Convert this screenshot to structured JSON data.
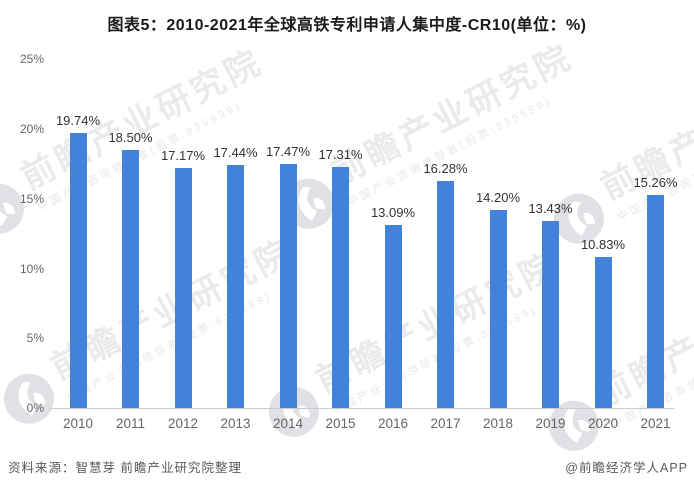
{
  "title": "图表5：2010-2021年全球高铁专利申请人集中度-CR10(单位：%)",
  "chart_data": {
    "type": "bar",
    "categories": [
      "2010",
      "2011",
      "2012",
      "2013",
      "2014",
      "2015",
      "2016",
      "2017",
      "2018",
      "2019",
      "2020",
      "2021"
    ],
    "values": [
      19.74,
      18.5,
      17.17,
      17.44,
      17.47,
      17.31,
      13.09,
      16.28,
      14.2,
      13.43,
      10.83,
      15.26
    ],
    "value_labels": [
      "19.74%",
      "18.50%",
      "17.17%",
      "17.44%",
      "17.47%",
      "17.31%",
      "13.09%",
      "16.28%",
      "14.20%",
      "13.43%",
      "10.83%",
      "15.26%"
    ],
    "title": "图表5：2010-2021年全球高铁专利申请人集中度-CR10(单位：%)",
    "xlabel": "",
    "ylabel": "",
    "unit": "%",
    "ylim": [
      0,
      25
    ],
    "yticks": [
      0,
      5,
      10,
      15,
      20,
      25
    ],
    "ytick_labels": [
      "0%",
      "5%",
      "10%",
      "15%",
      "20%",
      "25%"
    ],
    "grid": false,
    "legend": false,
    "bar_color": "#4183DC"
  },
  "watermark": {
    "big_text": "前瞻产业研究院",
    "small_text": "中国产业咨询领导者(股票:839599)",
    "logo_circle_color": "#c6c9ce",
    "logo_glyph_color": "#ffffff"
  },
  "footer": {
    "source": "资料来源：智慧芽 前瞻产业研究院整理",
    "credit": "@前瞻经济学人APP"
  }
}
